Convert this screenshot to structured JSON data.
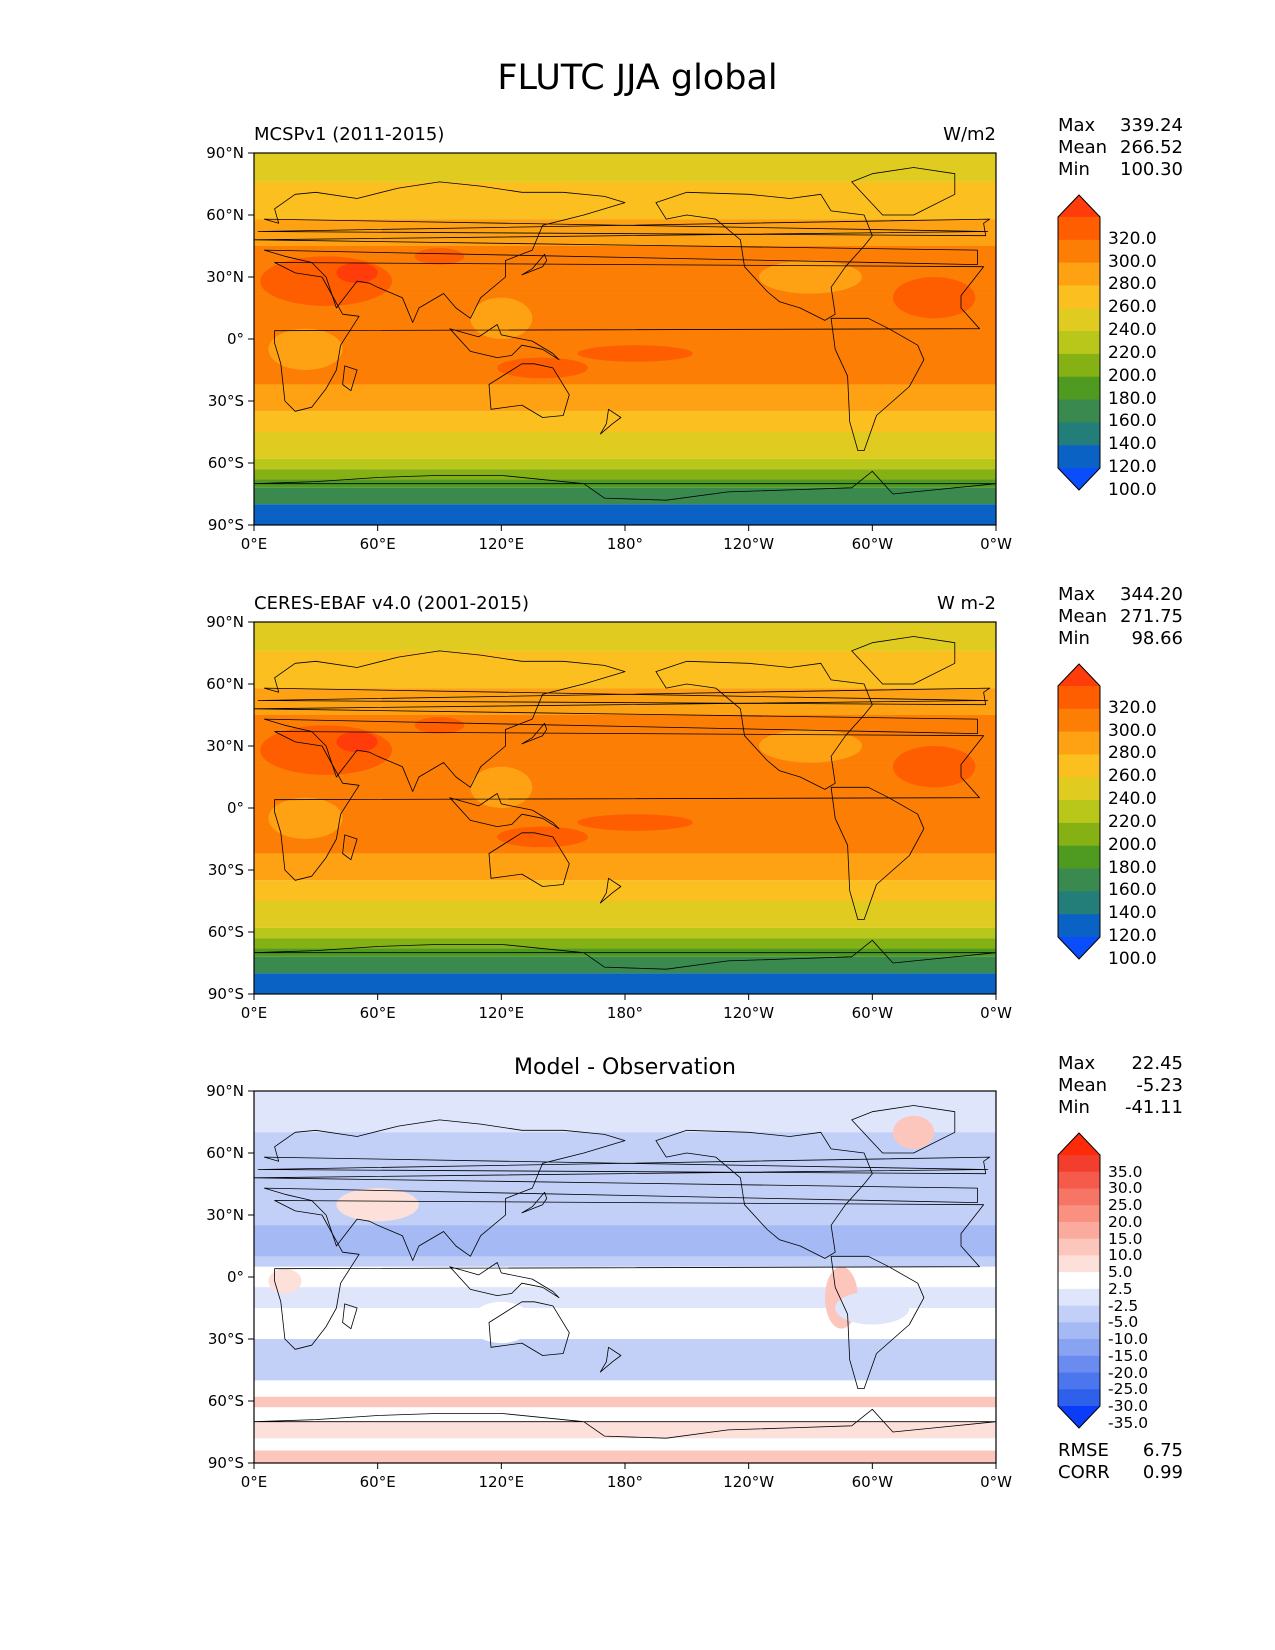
{
  "title": "FLUTC JJA global",
  "lat_ticks": [
    "90°N",
    "60°N",
    "30°N",
    "0°",
    "30°S",
    "60°S",
    "90°S"
  ],
  "lon_ticks": [
    "0°E",
    "60°E",
    "120°E",
    "180°",
    "120°W",
    "60°W",
    "0°W"
  ],
  "panels": [
    {
      "title_left": "MCSPv1 (2011-2015)",
      "title_right": "W/m2",
      "title_center": "",
      "stats": [
        {
          "key": "Max",
          "value": "339.24"
        },
        {
          "key": "Mean",
          "value": "266.52"
        },
        {
          "key": "Min",
          "value": "100.30"
        }
      ],
      "colorbar": {
        "labels": [
          "320.0",
          "300.0",
          "280.0",
          "260.0",
          "240.0",
          "220.0",
          "200.0",
          "180.0",
          "160.0",
          "140.0",
          "120.0",
          "100.0"
        ],
        "colors": [
          "#ff3c0a",
          "#ff5e00",
          "#fd7e05",
          "#fea213",
          "#fbbf1f",
          "#e0cc20",
          "#b9c61a",
          "#86b115",
          "#4f9b22",
          "#3a8a4f",
          "#237e7a",
          "#0a63c4",
          "#0a4dfa"
        ]
      }
    },
    {
      "title_left": "CERES-EBAF v4.0 (2001-2015)",
      "title_right": "W m-2",
      "title_center": "",
      "stats": [
        {
          "key": "Max",
          "value": "344.20"
        },
        {
          "key": "Mean",
          "value": "271.75"
        },
        {
          "key": "Min",
          "value": "98.66"
        }
      ],
      "colorbar": {
        "labels": [
          "320.0",
          "300.0",
          "280.0",
          "260.0",
          "240.0",
          "220.0",
          "200.0",
          "180.0",
          "160.0",
          "140.0",
          "120.0",
          "100.0"
        ],
        "colors": [
          "#ff3c0a",
          "#ff5e00",
          "#fd7e05",
          "#fea213",
          "#fbbf1f",
          "#e0cc20",
          "#b9c61a",
          "#86b115",
          "#4f9b22",
          "#3a8a4f",
          "#237e7a",
          "#0a63c4",
          "#0a4dfa"
        ]
      }
    },
    {
      "title_left": "",
      "title_right": "",
      "title_center": "Model - Observation",
      "stats": [
        {
          "key": "Max",
          "value": "22.45"
        },
        {
          "key": "Mean",
          "value": "-5.23"
        },
        {
          "key": "Min",
          "value": "-41.11"
        }
      ],
      "colorbar": {
        "labels": [
          "35.0",
          "30.0",
          "25.0",
          "20.0",
          "15.0",
          "10.0",
          "5.0",
          "2.5",
          "-2.5",
          "-5.0",
          "-10.0",
          "-15.0",
          "-20.0",
          "-25.0",
          "-30.0",
          "-35.0"
        ],
        "colors": [
          "#ff2a0a",
          "#f33e2e",
          "#f65a4a",
          "#f77565",
          "#f99080",
          "#fbab9e",
          "#fdc6bc",
          "#fde0da",
          "#ffffff",
          "#dfe6fb",
          "#c2d0f8",
          "#a5baf5",
          "#88a3f2",
          "#6a8cf0",
          "#4c76ee",
          "#2e60ec",
          "#0a3cfa"
        ]
      },
      "error_stats": [
        {
          "key": "RMSE",
          "value": "6.75"
        },
        {
          "key": "CORR",
          "value": "0.99"
        }
      ]
    }
  ]
}
